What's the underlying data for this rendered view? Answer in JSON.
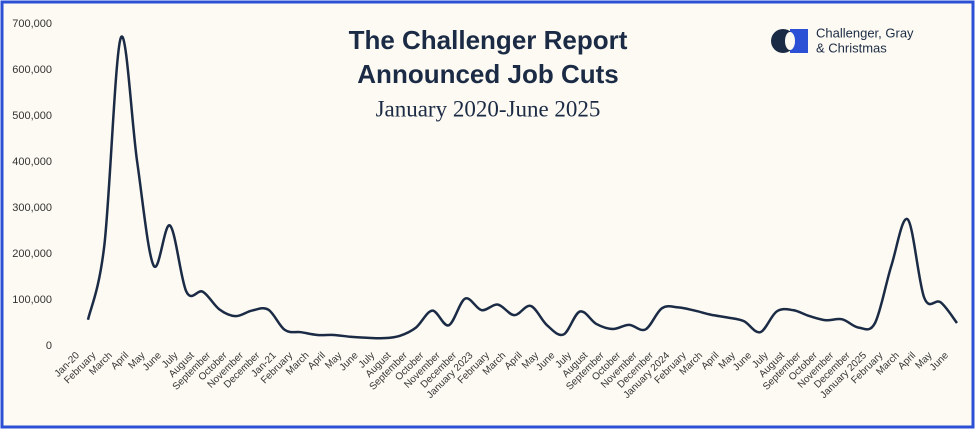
{
  "chart_data": {
    "type": "line",
    "title": "The Challenger Report",
    "title_line2": "Announced Job Cuts",
    "subtitle": "January 2020-June 2025",
    "logo": {
      "line1": "Challenger, Gray",
      "line2": "& Christmas"
    },
    "categories": [
      "Jan-20",
      "February",
      "March",
      "April",
      "May",
      "June",
      "July",
      "August",
      "September",
      "October",
      "November",
      "December",
      "Jan-21",
      "February",
      "March",
      "April",
      "May",
      "June",
      "July",
      "August",
      "September",
      "October",
      "November",
      "December",
      "January 2023",
      "February",
      "March",
      "April",
      "May",
      "June",
      "July",
      "August",
      "September",
      "October",
      "November",
      "December",
      "January 2024",
      "February",
      "March",
      "April",
      "May",
      "June",
      "July",
      "August",
      "September",
      "October",
      "November",
      "December",
      "January 2025",
      "February",
      "March",
      "April",
      "May",
      "June"
    ],
    "series": [
      {
        "name": "Announced Job Cuts",
        "color": "#1c2b45",
        "values": [
          57000,
          220000,
          670000,
          400000,
          175000,
          262000,
          118000,
          118000,
          80000,
          65000,
          77000,
          79000,
          35000,
          30000,
          24000,
          24000,
          20000,
          18000,
          17000,
          22000,
          40000,
          77000,
          45000,
          103000,
          78000,
          90000,
          67000,
          87000,
          45000,
          25000,
          75000,
          48000,
          37000,
          46000,
          36000,
          82000,
          84000,
          77000,
          68000,
          62000,
          54000,
          30000,
          75000,
          78000,
          65000,
          56000,
          58000,
          40000,
          50000,
          175000,
          275000,
          105000,
          95000,
          50000
        ]
      }
    ],
    "ylim": [
      0,
      700000
    ],
    "yticks": [
      0,
      {
        "value": 100000,
        "label": "100,000"
      },
      {
        "value": 200000,
        "label": "200,000"
      },
      {
        "value": 300000,
        "label": "300,000"
      },
      {
        "value": 400000,
        "label": "400,000"
      },
      {
        "value": 500000,
        "label": "500,000"
      },
      {
        "value": 600000,
        "label": "600,000"
      },
      {
        "value": 700000,
        "label": "700,000"
      }
    ]
  }
}
